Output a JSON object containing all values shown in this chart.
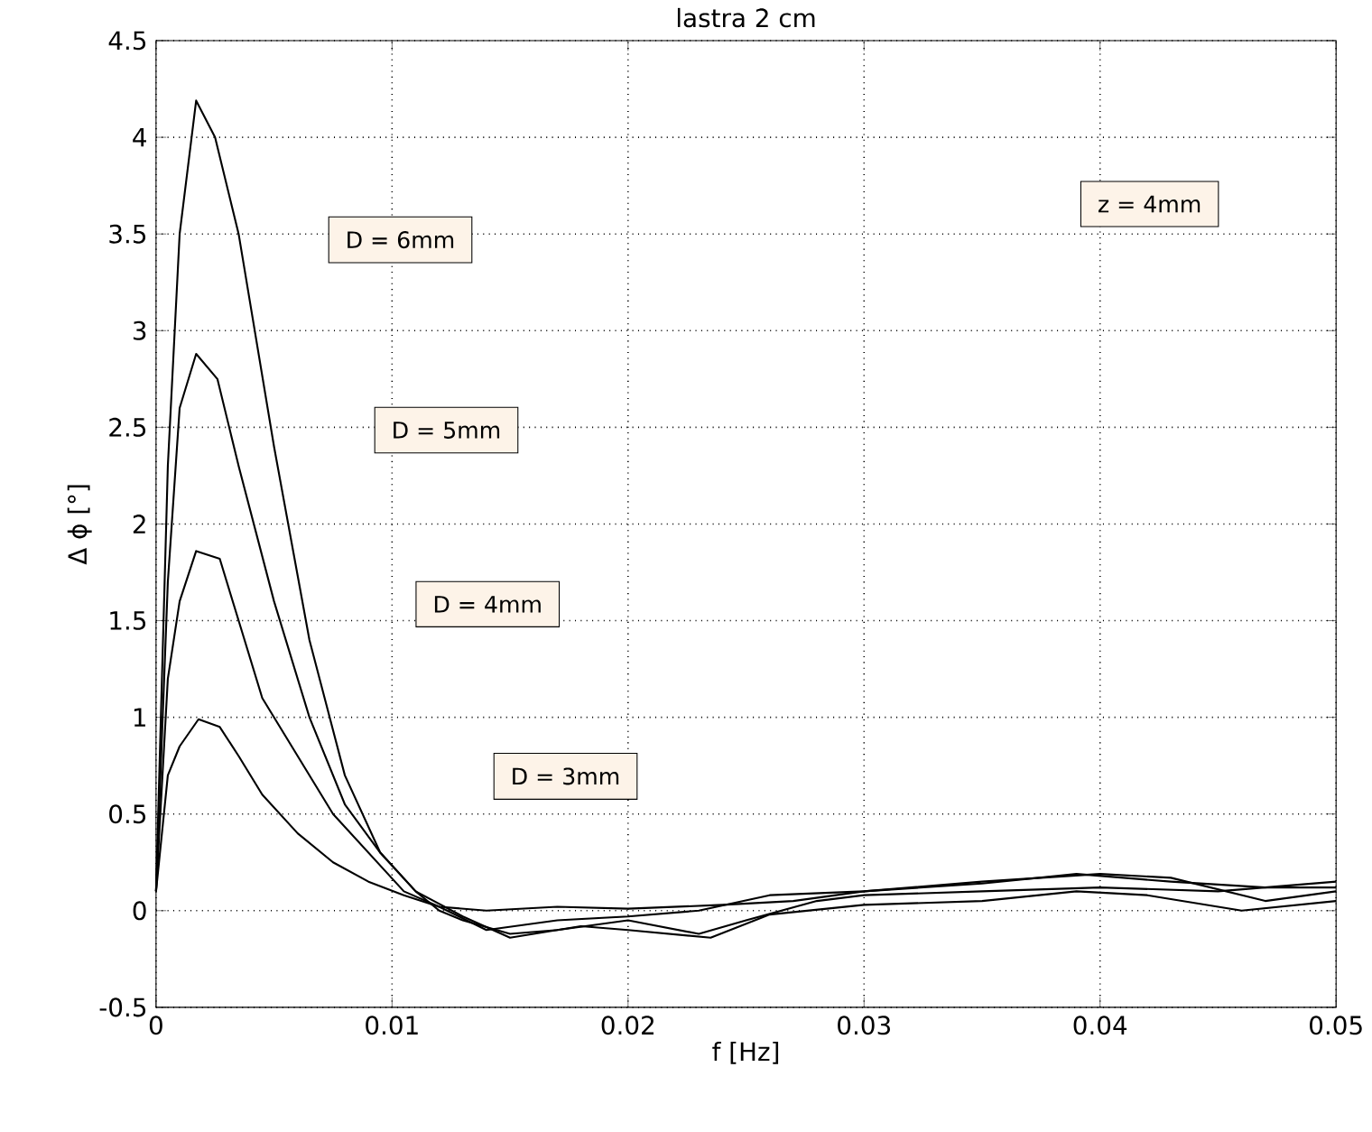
{
  "chart_data": {
    "type": "line",
    "title": "lastra 2 cm",
    "xlabel": "f [Hz]",
    "ylabel": "Δ ϕ [°]",
    "series": [
      {
        "color": "#000000",
        "x": [
          0,
          0.0005,
          0.001,
          0.0017,
          0.0025,
          0.0035,
          0.005,
          0.0065,
          0.008,
          0.0095,
          0.011,
          0.012,
          0.013,
          0.015,
          0.017,
          0.02,
          0.023,
          0.025,
          0.028,
          0.03,
          0.035,
          0.04,
          0.045,
          0.05
        ],
        "values": [
          0.1,
          2.3,
          3.5,
          4.19,
          4.0,
          3.5,
          2.4,
          1.4,
          0.7,
          0.3,
          0.1,
          0.0,
          -0.05,
          -0.12,
          -0.1,
          -0.05,
          -0.12,
          -0.05,
          0.05,
          0.08,
          0.1,
          0.12,
          0.1,
          0.15
        ]
      },
      {
        "color": "#000000",
        "x": [
          0,
          0.0005,
          0.001,
          0.0017,
          0.0026,
          0.0035,
          0.005,
          0.0065,
          0.008,
          0.0095,
          0.011,
          0.013,
          0.015,
          0.018,
          0.02,
          0.0235,
          0.026,
          0.03,
          0.035,
          0.039,
          0.042,
          0.046,
          0.05
        ],
        "values": [
          0.1,
          1.7,
          2.6,
          2.88,
          2.75,
          2.3,
          1.6,
          1.0,
          0.55,
          0.3,
          0.1,
          -0.03,
          -0.14,
          -0.08,
          -0.1,
          -0.14,
          -0.02,
          0.03,
          0.05,
          0.1,
          0.08,
          0.0,
          0.05
        ]
      },
      {
        "color": "#000000",
        "x": [
          0,
          0.0005,
          0.001,
          0.0017,
          0.0027,
          0.0035,
          0.0045,
          0.006,
          0.0075,
          0.009,
          0.0105,
          0.012,
          0.014,
          0.017,
          0.02,
          0.023,
          0.026,
          0.03,
          0.035,
          0.04,
          0.043,
          0.047,
          0.05
        ],
        "values": [
          0.1,
          1.2,
          1.6,
          1.86,
          1.82,
          1.5,
          1.1,
          0.8,
          0.5,
          0.3,
          0.1,
          0.02,
          -0.1,
          -0.05,
          -0.03,
          0.0,
          0.08,
          0.1,
          0.15,
          0.19,
          0.17,
          0.05,
          0.1
        ]
      },
      {
        "color": "#000000",
        "x": [
          0,
          0.0005,
          0.001,
          0.0018,
          0.0027,
          0.0035,
          0.0045,
          0.006,
          0.0075,
          0.009,
          0.0105,
          0.012,
          0.014,
          0.017,
          0.02,
          0.024,
          0.027,
          0.03,
          0.035,
          0.039,
          0.043,
          0.047,
          0.05
        ],
        "values": [
          0.1,
          0.7,
          0.85,
          0.99,
          0.95,
          0.8,
          0.6,
          0.4,
          0.25,
          0.15,
          0.08,
          0.02,
          0.0,
          0.02,
          0.01,
          0.03,
          0.05,
          0.1,
          0.14,
          0.19,
          0.15,
          0.12,
          0.12
        ]
      }
    ],
    "annotations": [
      "D = 6mm",
      "D = 5mm",
      "D = 4mm",
      "D = 3mm",
      "z = 4mm"
    ],
    "xlim": [
      0,
      0.05
    ],
    "xticks": [
      0,
      0.01,
      0.02,
      0.03,
      0.04,
      0.05
    ],
    "ylim": [
      -0.5,
      4.5
    ],
    "yticks": [
      -0.5,
      0,
      0.5,
      1,
      1.5,
      2,
      2.5,
      3,
      3.5,
      4,
      4.5
    ],
    "grid": true,
    "marker": "none",
    "line_style": "solid"
  }
}
